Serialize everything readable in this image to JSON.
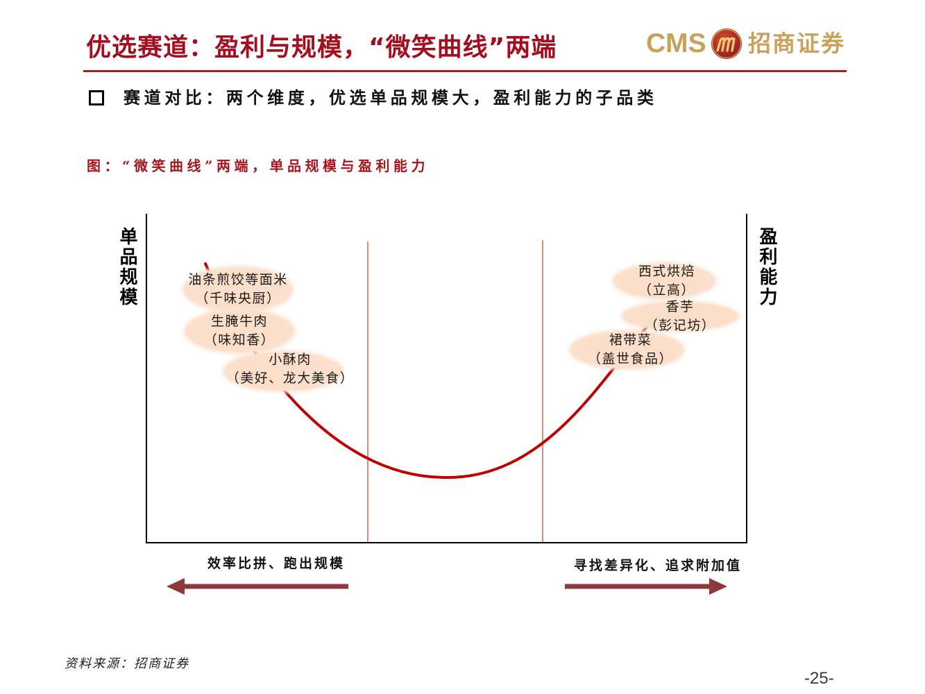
{
  "header": {
    "title": "优选赛道：盈利与规模，“微笑曲线”两端",
    "logo": {
      "latin": "CMS",
      "chinese": "招商证券",
      "emblem_icon": "cms-emblem-icon"
    }
  },
  "bullet": {
    "icon": "hollow-square-icon",
    "text": "赛道对比：两个维度，优选单品规模大，盈利能力的子品类"
  },
  "figure": {
    "caption": "图：“微笑曲线”两端，单品规模与盈利能力",
    "left_axis_label": "单品规模",
    "right_axis_label": "盈利能力",
    "left_items": [
      {
        "product": "油条煎饺等面米",
        "company": "（千味央厨）"
      },
      {
        "product": "生腌牛肉",
        "company": "（味知香）"
      },
      {
        "product": "小酥肉",
        "company": "（美好、龙大美食）"
      }
    ],
    "right_items": [
      {
        "product": "西式烘焙",
        "company": "（立高）"
      },
      {
        "product": "香芋",
        "company": "（彭记坊）"
      },
      {
        "product": "裙带菜",
        "company": "（盖世食品）"
      }
    ],
    "left_direction": "效率比拼、跑出规模",
    "right_direction": "寻找差异化、追求附加值"
  },
  "footer": {
    "source": "资料来源：招商证券",
    "page_number": "-25-"
  },
  "colors": {
    "title": "#a30d1d",
    "rule": "#a51c24",
    "caption": "#a8151d",
    "curve": "#c00000",
    "divider": "#d0694a",
    "arrow": "#8e3a3a",
    "bubble": "#fbdfca",
    "logo_gold": "#c9a15a",
    "logo_red": "#8e1c1c"
  }
}
